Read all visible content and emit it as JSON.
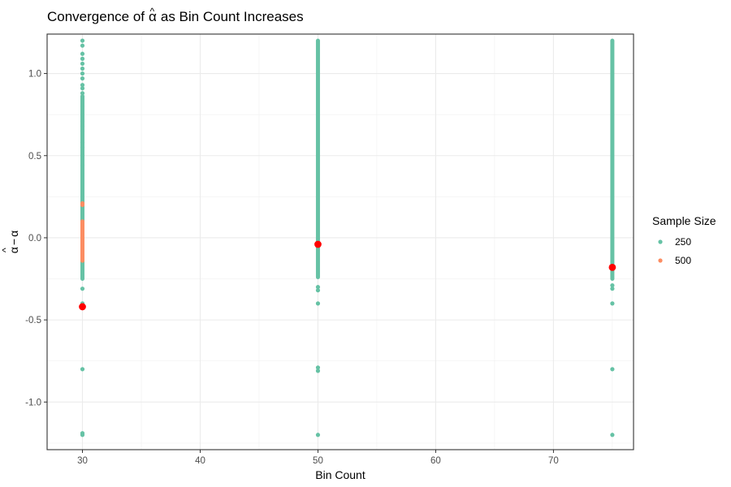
{
  "chart_data": {
    "type": "scatter",
    "title": {
      "prefix": "Convergence of",
      "symbol": "α",
      "hat": "^",
      "suffix": "as Bin Count Increases"
    },
    "xlabel": "Bin Count",
    "ylabel": {
      "hat": "^",
      "alpha_hat": "α",
      "minus": "−",
      "alpha": "α"
    },
    "xlim": [
      27,
      76.8
    ],
    "ylim": [
      -1.29,
      1.24
    ],
    "x_ticks": [
      30,
      40,
      50,
      60,
      70
    ],
    "x_tick_labels": [
      "30",
      "40",
      "50",
      "60",
      "70"
    ],
    "y_ticks": [
      -1.0,
      -0.5,
      0.0,
      0.5,
      1.0
    ],
    "y_tick_labels": [
      "-1.0",
      "-0.5",
      "0.0",
      "0.5",
      "1.0"
    ],
    "x_minor_ticks": [
      35,
      45,
      55,
      65,
      75
    ],
    "y_minor_ticks": [
      -1.25,
      -0.75,
      -0.25,
      0.25,
      0.75
    ],
    "grid": true,
    "legend": {
      "title": "Sample Size",
      "position": "right",
      "entries": [
        {
          "label": "250",
          "color": "#66c2a5"
        },
        {
          "label": "500",
          "color": "#fc8d62"
        }
      ]
    },
    "series": [
      {
        "name": "250",
        "color": "#66c2a5",
        "bands": [
          {
            "x": 30,
            "from": -0.25,
            "to": 0.86
          },
          {
            "x": 50,
            "from": -0.24,
            "to": 1.2
          },
          {
            "x": 75,
            "from": -0.25,
            "to": 1.2
          }
        ],
        "points": [
          {
            "x": 30,
            "y": 1.2
          },
          {
            "x": 30,
            "y": 1.17
          },
          {
            "x": 30,
            "y": 1.12
          },
          {
            "x": 30,
            "y": 1.09
          },
          {
            "x": 30,
            "y": 1.06
          },
          {
            "x": 30,
            "y": 1.03
          },
          {
            "x": 30,
            "y": 1.0
          },
          {
            "x": 30,
            "y": 0.97
          },
          {
            "x": 30,
            "y": 0.93
          },
          {
            "x": 30,
            "y": 0.91
          },
          {
            "x": 30,
            "y": 0.88
          },
          {
            "x": 30,
            "y": 0.86
          },
          {
            "x": 30,
            "y": 0.8
          },
          {
            "x": 30,
            "y": 0.71
          },
          {
            "x": 30,
            "y": 0.68
          },
          {
            "x": 30,
            "y": 0.65
          },
          {
            "x": 30,
            "y": 0.58
          },
          {
            "x": 30,
            "y": 0.55
          },
          {
            "x": 30,
            "y": 0.5
          },
          {
            "x": 30,
            "y": 0.44
          },
          {
            "x": 30,
            "y": -0.31
          },
          {
            "x": 30,
            "y": -0.4
          },
          {
            "x": 30,
            "y": -0.8
          },
          {
            "x": 30,
            "y": -1.19
          },
          {
            "x": 30,
            "y": -1.2
          },
          {
            "x": 50,
            "y": -0.3
          },
          {
            "x": 50,
            "y": -0.32
          },
          {
            "x": 50,
            "y": -0.4
          },
          {
            "x": 50,
            "y": -0.79
          },
          {
            "x": 50,
            "y": -0.81
          },
          {
            "x": 50,
            "y": -1.2
          },
          {
            "x": 75,
            "y": -0.29
          },
          {
            "x": 75,
            "y": -0.31
          },
          {
            "x": 75,
            "y": -0.4
          },
          {
            "x": 75,
            "y": -0.8
          },
          {
            "x": 75,
            "y": -1.2
          }
        ]
      },
      {
        "name": "500",
        "color": "#fc8d62",
        "bands": [
          {
            "x": 30,
            "from": -0.14,
            "to": 0.1
          }
        ],
        "points": [
          {
            "x": 30,
            "y": 0.2
          },
          {
            "x": 30,
            "y": 0.21
          },
          {
            "x": 30,
            "y": -0.41
          }
        ]
      }
    ],
    "mean_points": {
      "color": "#ff0000",
      "points": [
        {
          "x": 30,
          "y": -0.42
        },
        {
          "x": 50,
          "y": -0.04
        },
        {
          "x": 75,
          "y": -0.18
        }
      ]
    }
  }
}
